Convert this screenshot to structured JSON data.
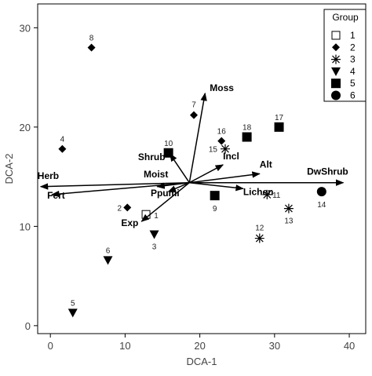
{
  "chart_data": {
    "type": "scatter",
    "xlabel": "DCA-1",
    "ylabel": "DCA-2",
    "xlim": [
      -1.7,
      42.2
    ],
    "ylim": [
      -0.8,
      32.4
    ],
    "xticks": [
      0,
      10,
      20,
      30,
      40
    ],
    "yticks": [
      0,
      10,
      20,
      30
    ],
    "legend": {
      "title": "Group",
      "position": "upper right"
    },
    "series": [
      {
        "name": "1",
        "marker": "open-square",
        "color": "#000000",
        "x": [
          12.8
        ],
        "y": [
          11.2
        ],
        "labels": [
          "1"
        ]
      },
      {
        "name": "2",
        "marker": "diamond",
        "color": "#000000",
        "x": [
          10.3,
          1.6,
          19.2,
          5.5,
          22.9
        ],
        "y": [
          11.9,
          17.8,
          21.2,
          28.0,
          18.6
        ],
        "labels": [
          "2",
          "4",
          "7",
          "8",
          "16"
        ]
      },
      {
        "name": "3",
        "marker": "star",
        "color": "#000000",
        "x": [
          29.0,
          28.0,
          31.9,
          23.4
        ],
        "y": [
          13.2,
          8.8,
          11.8,
          17.8
        ],
        "labels": [
          "11",
          "12",
          "13",
          "15"
        ]
      },
      {
        "name": "4",
        "marker": "triangle-down",
        "color": "#000000",
        "x": [
          13.9,
          3.0,
          7.7
        ],
        "y": [
          9.2,
          1.3,
          6.6
        ],
        "labels": [
          "3",
          "5",
          "6"
        ]
      },
      {
        "name": "5",
        "marker": "square",
        "color": "#000000",
        "x": [
          22.0,
          15.8,
          30.6,
          26.3
        ],
        "y": [
          13.1,
          17.4,
          20.0,
          19.0
        ],
        "labels": [
          "9",
          "10",
          "17",
          "18"
        ]
      },
      {
        "name": "6",
        "marker": "circle",
        "color": "#000000",
        "x": [
          36.3
        ],
        "y": [
          13.5
        ],
        "labels": [
          "14"
        ]
      }
    ],
    "origin": [
      18.6,
      14.4
    ],
    "vectors": [
      {
        "name": "Moss",
        "x": 20.7,
        "y": 23.4
      },
      {
        "name": "Herb",
        "x": -1.3,
        "y": 14.0
      },
      {
        "name": "Fert",
        "x": 0.2,
        "y": 13.2
      },
      {
        "name": "DwShrub",
        "x": 39.2,
        "y": 14.4
      },
      {
        "name": "Alt",
        "x": 28.0,
        "y": 15.3
      },
      {
        "name": "Incl",
        "x": 23.1,
        "y": 16.2
      },
      {
        "name": "Lichen",
        "x": 25.8,
        "y": 13.8
      },
      {
        "name": "Exp",
        "x": 12.2,
        "y": 10.5
      },
      {
        "name": "Shrub",
        "x": 16.0,
        "y": 17.3
      },
      {
        "name": "Moist",
        "x": 14.3,
        "y": 14.0
      },
      {
        "name": "Ppumi",
        "x": 15.8,
        "y": 13.5
      }
    ]
  }
}
